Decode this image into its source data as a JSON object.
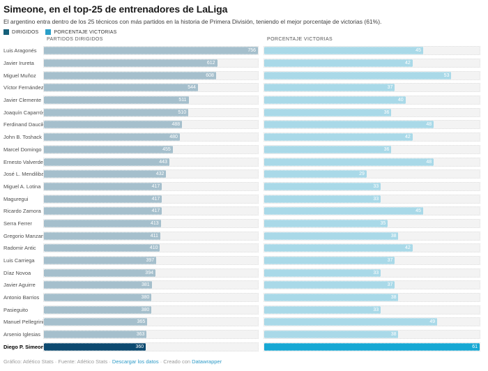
{
  "header": {
    "title": "Simeone, en el top-25 de entrenadores de LaLiga",
    "subtitle": "El argentino entra dentro de los 25 técnicos con más partidos en la historia de Primera División, teniendo el mejor porcentaje de victorias (61%)."
  },
  "legend": {
    "items": [
      {
        "label": "DIRIGIDOS",
        "color": "#15607a"
      },
      {
        "label": "PORCENTAJE VICTORIAS",
        "color": "#2a9fc9"
      }
    ]
  },
  "columns": {
    "left": "PARTIDOS DIRIGIDOS",
    "right": "PORCENTAJE VICTORIAS"
  },
  "chart_data": {
    "type": "bar",
    "orientation": "horizontal",
    "title": "Simeone, en el top-25 de entrenadores de LaLiga",
    "subtitle": "El argentino entra dentro de los 25 técnicos con más partidos en la historia de Primera División, teniendo el mejor porcentaje de victorias (61%).",
    "legend_position": "top-left",
    "grid": false,
    "track_color": "#f3f3f3",
    "highlight_category": "Diego P. Simeone",
    "categories": [
      "Luis Aragonés",
      "Javier Irureta",
      "Miguel Muñoz",
      "Víctor Fernández",
      "Javier Clemente",
      "Joaquín Caparrós",
      "Ferdinand Daucik",
      "John B. Toshack",
      "Marcel Domingo",
      "Ernesto Valverde",
      "José L. Mendilibar",
      "Miguel A. Lotina",
      "Maguregui",
      "Ricardo Zamora",
      "Serra Ferrer",
      "Gregorio Manzano",
      "Radomir Antic",
      "Luis Carriega",
      "Díaz Novoa",
      "Javier Aguirre",
      "Antonio Barrios",
      "Pasieguito",
      "Manuel Pellegrini",
      "Arsenio Iglesias",
      "Diego P. Simeone"
    ],
    "series": [
      {
        "name": "PARTIDOS DIRIGIDOS",
        "axis_range": [
          0,
          756
        ],
        "max": 756,
        "bar_color": "#a5bfcc",
        "highlight_color": "#0d4a70",
        "values": [
          756,
          612,
          608,
          544,
          511,
          510,
          488,
          480,
          455,
          443,
          432,
          417,
          417,
          417,
          413,
          411,
          410,
          397,
          394,
          381,
          380,
          380,
          365,
          363,
          360
        ]
      },
      {
        "name": "PORCENTAJE VICTORIAS",
        "axis_range": [
          0,
          61
        ],
        "max": 61,
        "bar_color": "#a9d9e8",
        "highlight_color": "#17a8d4",
        "values": [
          45,
          42,
          53,
          37,
          40,
          36,
          48,
          42,
          36,
          48,
          29,
          33,
          33,
          45,
          35,
          38,
          42,
          37,
          33,
          37,
          38,
          33,
          49,
          38,
          61
        ]
      }
    ]
  },
  "footer": {
    "prefix": "Gráfico: Atlético Stats · Fuente: Atlético Stats · ",
    "download_label": "Descargar los datos",
    "middle": " · Creado con ",
    "datawrapper_label": "Datawrapper"
  }
}
